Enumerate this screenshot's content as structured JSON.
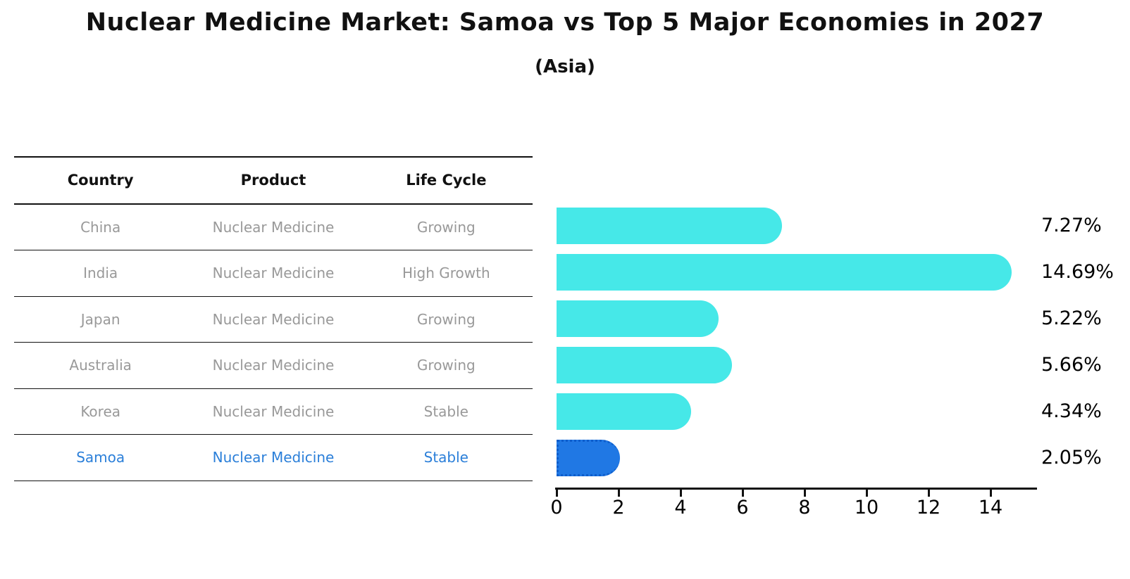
{
  "title": "Nuclear Medicine Market: Samoa vs Top 5 Major Economies in 2027",
  "subtitle": "(Asia)",
  "table": {
    "headers": [
      "Country",
      "Product",
      "Life Cycle"
    ],
    "rows": [
      {
        "country": "China",
        "product": "Nuclear Medicine",
        "life_cycle": "Growing",
        "highlight": false
      },
      {
        "country": "India",
        "product": "Nuclear Medicine",
        "life_cycle": "High Growth",
        "highlight": false
      },
      {
        "country": "Japan",
        "product": "Nuclear Medicine",
        "life_cycle": "Growing",
        "highlight": false
      },
      {
        "country": "Australia",
        "product": "Nuclear Medicine",
        "life_cycle": "Growing",
        "highlight": false
      },
      {
        "country": "Korea",
        "product": "Nuclear Medicine",
        "life_cycle": "Stable",
        "highlight": false
      },
      {
        "country": "Samoa",
        "product": "Nuclear Medicine",
        "life_cycle": "Stable",
        "highlight": true
      }
    ]
  },
  "chart_data": {
    "type": "bar",
    "orientation": "horizontal",
    "categories": [
      "China",
      "India",
      "Japan",
      "Australia",
      "Korea",
      "Samoa"
    ],
    "values": [
      7.27,
      14.69,
      5.22,
      5.66,
      4.34,
      2.05
    ],
    "labels": [
      "7.27%",
      "14.69%",
      "5.22%",
      "5.66%",
      "4.34%",
      "2.05%"
    ],
    "x_ticks": [
      "0",
      "2",
      "4",
      "6",
      "8",
      "10",
      "12",
      "14"
    ],
    "xlim": [
      0,
      15.5
    ],
    "grid": false,
    "legend": "none",
    "bar_color": "#46E8E8",
    "highlight_color": "#2078E4",
    "highlight_index": 5,
    "highlight_text_color": "#2b7fd9",
    "title": "Nuclear Medicine Market: Samoa vs Top 5 Major Economies in 2027",
    "subtitle": "(Asia)",
    "xlabel": "",
    "ylabel": ""
  }
}
